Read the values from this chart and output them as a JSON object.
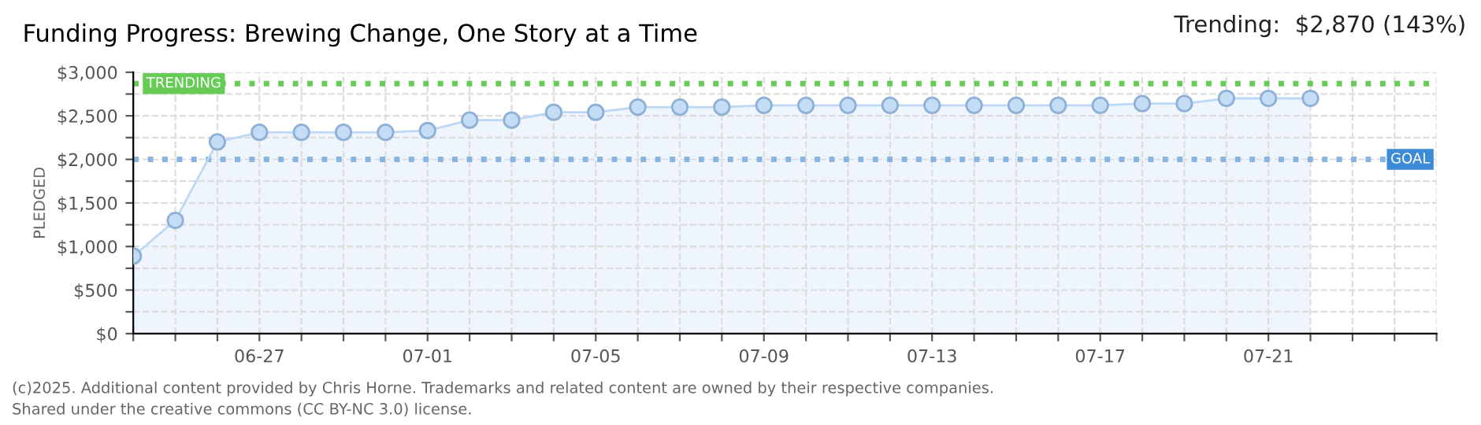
{
  "chart_data": {
    "type": "area",
    "title": "Funding Progress: Brewing Change, One Story at a Time",
    "ylabel": "PLEDGED",
    "annotations": [
      "Trending:  $2,870 (143%)",
      "(c)2025. Additional content provided by Chris Horne. Trademarks and related content are owned by their respective companies.",
      "Shared under the creative commons (CC BY-NC 3.0) license."
    ],
    "x": [
      "2025-06-24",
      "2025-06-25",
      "2025-06-26",
      "2025-06-27",
      "2025-06-28",
      "2025-06-29",
      "2025-06-30",
      "2025-07-01",
      "2025-07-02",
      "2025-07-03",
      "2025-07-04",
      "2025-07-05",
      "2025-07-06",
      "2025-07-07",
      "2025-07-08",
      "2025-07-09",
      "2025-07-10",
      "2025-07-11",
      "2025-07-12",
      "2025-07-13",
      "2025-07-14",
      "2025-07-15",
      "2025-07-16",
      "2025-07-17",
      "2025-07-18",
      "2025-07-19",
      "2025-07-20",
      "2025-07-21",
      "2025-07-22"
    ],
    "series": [
      {
        "color": "#bcd8f5",
        "values": [
          890,
          1300,
          2200,
          2310,
          2310,
          2310,
          2310,
          2330,
          2450,
          2450,
          2540,
          2540,
          2600,
          2600,
          2600,
          2620,
          2620,
          2620,
          2620,
          2620,
          2620,
          2620,
          2620,
          2620,
          2640,
          2640,
          2700,
          2700,
          2700
        ]
      }
    ],
    "xlim": [
      "2025-06-24",
      "2025-07-25"
    ],
    "xticks": [
      {
        "value": "2025-06-24",
        "label": null
      },
      {
        "value": "2025-06-25",
        "label": null
      },
      {
        "value": "2025-06-26",
        "label": null
      },
      {
        "value": "2025-06-27",
        "label": "06-27"
      },
      {
        "value": "2025-06-28",
        "label": null
      },
      {
        "value": "2025-06-29",
        "label": null
      },
      {
        "value": "2025-06-30",
        "label": null
      },
      {
        "value": "2025-07-01",
        "label": "07-01"
      },
      {
        "value": "2025-07-02",
        "label": null
      },
      {
        "value": "2025-07-03",
        "label": null
      },
      {
        "value": "2025-07-04",
        "label": null
      },
      {
        "value": "2025-07-05",
        "label": "07-05"
      },
      {
        "value": "2025-07-06",
        "label": null
      },
      {
        "value": "2025-07-07",
        "label": null
      },
      {
        "value": "2025-07-08",
        "label": null
      },
      {
        "value": "2025-07-09",
        "label": "07-09"
      },
      {
        "value": "2025-07-10",
        "label": null
      },
      {
        "value": "2025-07-11",
        "label": null
      },
      {
        "value": "2025-07-12",
        "label": null
      },
      {
        "value": "2025-07-13",
        "label": "07-13"
      },
      {
        "value": "2025-07-14",
        "label": null
      },
      {
        "value": "2025-07-15",
        "label": null
      },
      {
        "value": "2025-07-16",
        "label": null
      },
      {
        "value": "2025-07-17",
        "label": "07-17"
      },
      {
        "value": "2025-07-18",
        "label": null
      },
      {
        "value": "2025-07-19",
        "label": null
      },
      {
        "value": "2025-07-20",
        "label": null
      },
      {
        "value": "2025-07-21",
        "label": "07-21"
      },
      {
        "value": "2025-07-22",
        "label": null
      },
      {
        "value": "2025-07-23",
        "label": null
      },
      {
        "value": "2025-07-24",
        "label": null
      },
      {
        "value": "2025-07-25",
        "label": null
      }
    ],
    "ylim": [
      0,
      3000
    ],
    "yticks": [
      {
        "value": 0,
        "label": "$0"
      },
      {
        "value": 250,
        "label": null
      },
      {
        "value": 500,
        "label": "$500"
      },
      {
        "value": 750,
        "label": null
      },
      {
        "value": 1000,
        "label": "$1,000"
      },
      {
        "value": 1250,
        "label": null
      },
      {
        "value": 1500,
        "label": "$1,500"
      },
      {
        "value": 1750,
        "label": null
      },
      {
        "value": 2000,
        "label": "$2,000"
      },
      {
        "value": 2250,
        "label": null
      },
      {
        "value": 2500,
        "label": "$2,500"
      },
      {
        "value": 2750,
        "label": null
      },
      {
        "value": 3000,
        "label": "$3,000"
      }
    ],
    "ref_lines": [
      {
        "axis": "y",
        "value": 2870,
        "label": "TRENDING",
        "color": "#66cc55",
        "line_style": "dotted"
      },
      {
        "axis": "y",
        "value": 2000,
        "label": "GOAL",
        "color": "#88b4e0",
        "line_style": "dotted"
      }
    ],
    "grid": true,
    "marker": "circle",
    "line_style": "solid"
  }
}
